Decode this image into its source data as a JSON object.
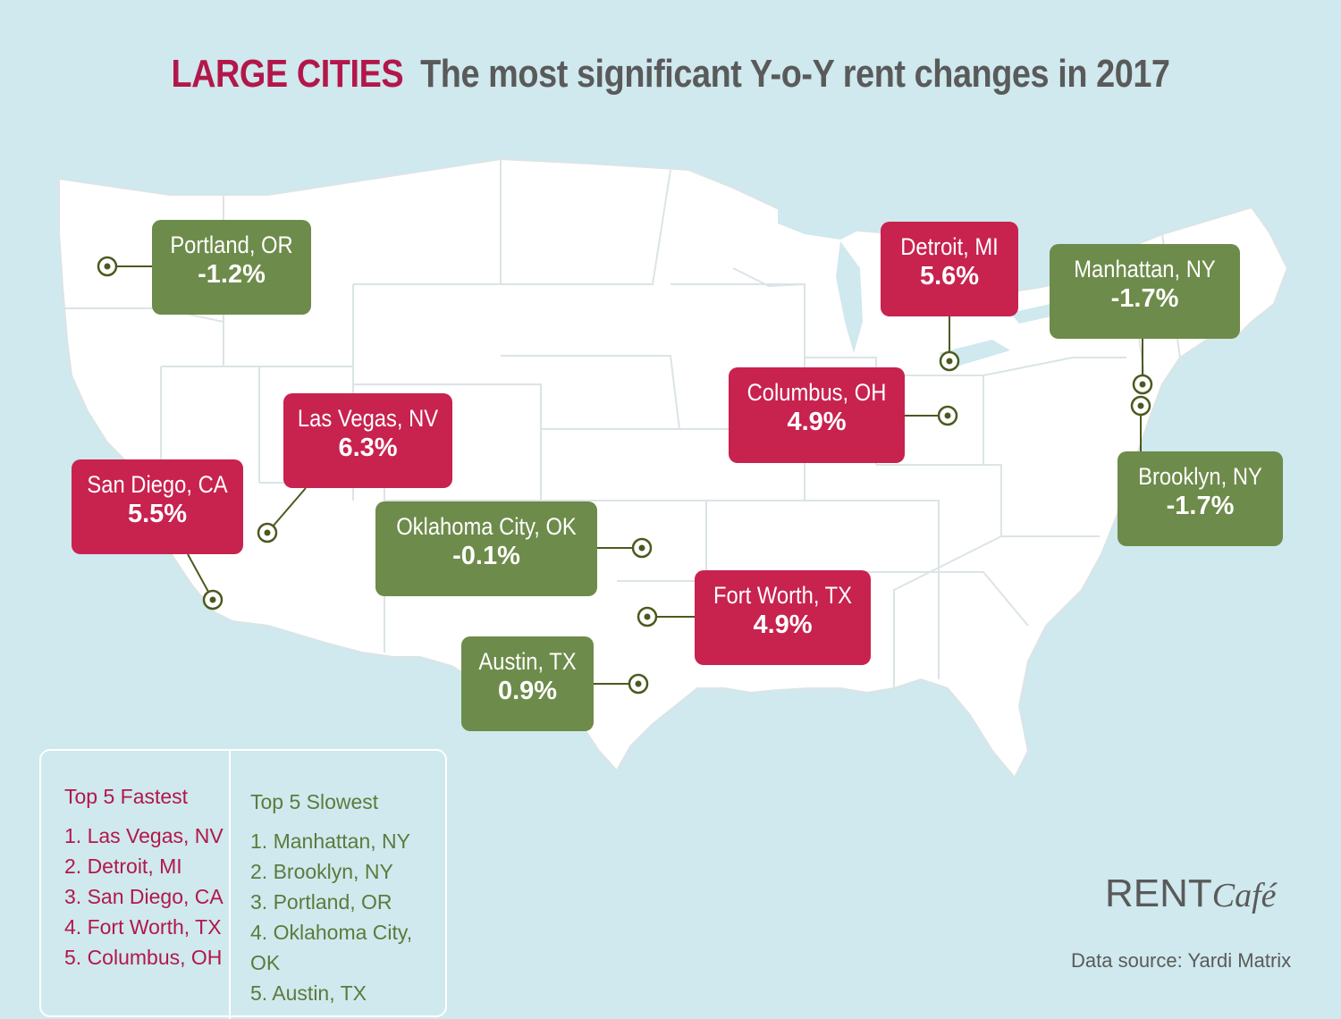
{
  "title": {
    "highlight": "LARGE CITIES",
    "main": "The most significant Y-o-Y rent changes in 2017"
  },
  "colors": {
    "background": "#cfe9ee",
    "map": "#ffffff",
    "fastest": "#c8224f",
    "slowest": "#6d8b4a",
    "marker": "#4a5a1f"
  },
  "cities": [
    {
      "name": "Portland, OR",
      "change": "-1.2%",
      "group": "slowest"
    },
    {
      "name": "Detroit, MI",
      "change": "5.6%",
      "group": "fastest"
    },
    {
      "name": "Manhattan, NY",
      "change": "-1.7%",
      "group": "slowest"
    },
    {
      "name": "Columbus, OH",
      "change": "4.9%",
      "group": "fastest"
    },
    {
      "name": "Las Vegas, NV",
      "change": "6.3%",
      "group": "fastest"
    },
    {
      "name": "San Diego, CA",
      "change": "5.5%",
      "group": "fastest"
    },
    {
      "name": "Oklahoma City, OK",
      "change": "-0.1%",
      "group": "slowest"
    },
    {
      "name": "Brooklyn, NY",
      "change": "-1.7%",
      "group": "slowest"
    },
    {
      "name": "Fort Worth, TX",
      "change": "4.9%",
      "group": "fastest"
    },
    {
      "name": "Austin, TX",
      "change": "0.9%",
      "group": "slowest"
    }
  ],
  "legend": {
    "fastest": {
      "heading": "Top 5 Fastest",
      "items": [
        "1. Las Vegas, NV",
        "2. Detroit, MI",
        "3. San Diego, CA",
        "4. Fort Worth, TX",
        "5. Columbus, OH"
      ]
    },
    "slowest": {
      "heading": "Top 5 Slowest",
      "items": [
        "1. Manhattan, NY",
        "2. Brooklyn, NY",
        "3. Portland, OR",
        "4. Oklahoma City, OK",
        "5. Austin, TX"
      ]
    }
  },
  "brand": {
    "part1": "RENT",
    "part2": "Café"
  },
  "source": "Data source:  Yardi Matrix"
}
